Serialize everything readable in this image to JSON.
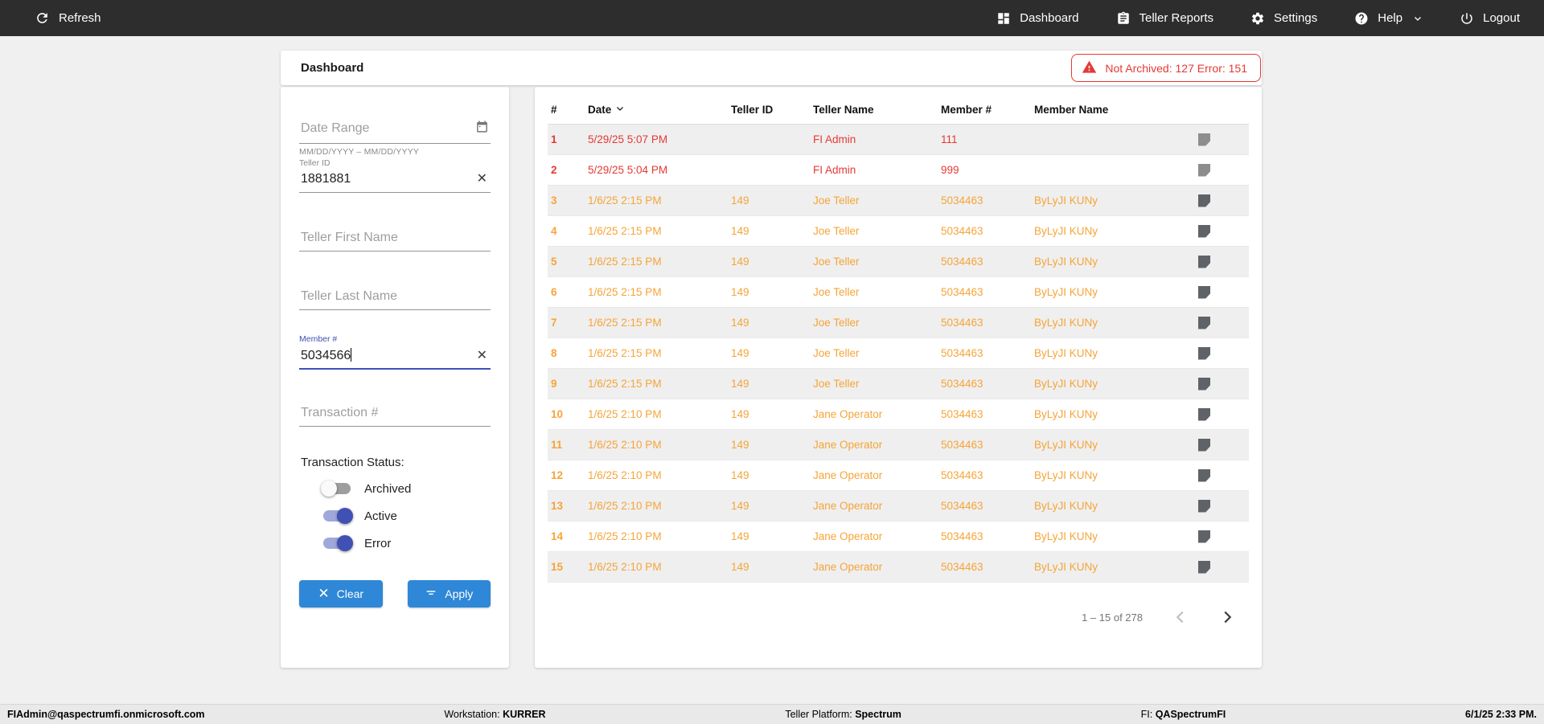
{
  "topbar": {
    "refresh_label": "Refresh",
    "nav": [
      {
        "label": "Dashboard"
      },
      {
        "label": "Teller Reports"
      },
      {
        "label": "Settings"
      },
      {
        "label": "Help"
      },
      {
        "label": "Logout"
      }
    ]
  },
  "header": {
    "title": "Dashboard",
    "alert": {
      "text": "Not Archived: 127  Error: 151",
      "color": "#E53935"
    }
  },
  "filters": {
    "date_range": {
      "placeholder": "Date Range",
      "hint": "MM/DD/YYYY – MM/DD/YYYY",
      "value": ""
    },
    "teller_id": {
      "label": "Teller ID",
      "value": "1881881"
    },
    "teller_first_name": {
      "placeholder": "Teller First Name",
      "value": ""
    },
    "teller_last_name": {
      "placeholder": "Teller Last Name",
      "value": ""
    },
    "member_number": {
      "label": "Member #",
      "value": "5034566"
    },
    "transaction_number": {
      "placeholder": "Transaction #",
      "value": ""
    },
    "status": {
      "label": "Transaction Status:",
      "toggles": [
        {
          "label": "Archived",
          "on": false
        },
        {
          "label": "Active",
          "on": true
        },
        {
          "label": "Error",
          "on": true
        }
      ]
    },
    "clear_label": "Clear",
    "apply_label": "Apply"
  },
  "table": {
    "columns": [
      "#",
      "Date",
      "Teller ID",
      "Teller Name",
      "Member #",
      "Member Name"
    ],
    "sorted_column": "Date",
    "rows": [
      {
        "num": "1",
        "date": "5/29/25 5:07 PM",
        "teller_id": "",
        "teller_name": "FI Admin",
        "member_number": "111",
        "member_name": "",
        "status": "error"
      },
      {
        "num": "2",
        "date": "5/29/25 5:04 PM",
        "teller_id": "",
        "teller_name": "FI Admin",
        "member_number": "999",
        "member_name": "",
        "status": "error"
      },
      {
        "num": "3",
        "date": "1/6/25 2:15 PM",
        "teller_id": "149",
        "teller_name": "Joe Teller",
        "member_number": "5034463",
        "member_name": "ByLyJI KUNy",
        "status": "active"
      },
      {
        "num": "4",
        "date": "1/6/25 2:15 PM",
        "teller_id": "149",
        "teller_name": "Joe Teller",
        "member_number": "5034463",
        "member_name": "ByLyJI KUNy",
        "status": "active"
      },
      {
        "num": "5",
        "date": "1/6/25 2:15 PM",
        "teller_id": "149",
        "teller_name": "Joe Teller",
        "member_number": "5034463",
        "member_name": "ByLyJI KUNy",
        "status": "active"
      },
      {
        "num": "6",
        "date": "1/6/25 2:15 PM",
        "teller_id": "149",
        "teller_name": "Joe Teller",
        "member_number": "5034463",
        "member_name": "ByLyJI KUNy",
        "status": "active"
      },
      {
        "num": "7",
        "date": "1/6/25 2:15 PM",
        "teller_id": "149",
        "teller_name": "Joe Teller",
        "member_number": "5034463",
        "member_name": "ByLyJI KUNy",
        "status": "active"
      },
      {
        "num": "8",
        "date": "1/6/25 2:15 PM",
        "teller_id": "149",
        "teller_name": "Joe Teller",
        "member_number": "5034463",
        "member_name": "ByLyJI KUNy",
        "status": "active"
      },
      {
        "num": "9",
        "date": "1/6/25 2:15 PM",
        "teller_id": "149",
        "teller_name": "Joe Teller",
        "member_number": "5034463",
        "member_name": "ByLyJI KUNy",
        "status": "active"
      },
      {
        "num": "10",
        "date": "1/6/25 2:10 PM",
        "teller_id": "149",
        "teller_name": "Jane Operator",
        "member_number": "5034463",
        "member_name": "ByLyJI KUNy",
        "status": "active"
      },
      {
        "num": "11",
        "date": "1/6/25 2:10 PM",
        "teller_id": "149",
        "teller_name": "Jane Operator",
        "member_number": "5034463",
        "member_name": "ByLyJI KUNy",
        "status": "active"
      },
      {
        "num": "12",
        "date": "1/6/25 2:10 PM",
        "teller_id": "149",
        "teller_name": "Jane Operator",
        "member_number": "5034463",
        "member_name": "ByLyJI KUNy",
        "status": "active"
      },
      {
        "num": "13",
        "date": "1/6/25 2:10 PM",
        "teller_id": "149",
        "teller_name": "Jane Operator",
        "member_number": "5034463",
        "member_name": "ByLyJI KUNy",
        "status": "active"
      },
      {
        "num": "14",
        "date": "1/6/25 2:10 PM",
        "teller_id": "149",
        "teller_name": "Jane Operator",
        "member_number": "5034463",
        "member_name": "ByLyJI KUNy",
        "status": "active"
      },
      {
        "num": "15",
        "date": "1/6/25 2:10 PM",
        "teller_id": "149",
        "teller_name": "Jane Operator",
        "member_number": "5034463",
        "member_name": "ByLyJI KUNy",
        "status": "active"
      }
    ],
    "pagination": {
      "range": "1 – 15 of 278"
    }
  },
  "footer": {
    "user": "FIAdmin@qaspectrumfi.onmicrosoft.com",
    "workstation_label": "Workstation: ",
    "workstation": "KURRER",
    "platform_label": "Teller Platform: ",
    "platform": "Spectrum",
    "fi_label": "FI: ",
    "fi": "QASpectrumFI",
    "datetime": "6/1/25 2:33 PM."
  },
  "colors": {
    "error": "#E53935",
    "active_orange": "#F6A438",
    "accent_blue": "#2E87D7",
    "indigo": "#3F51B5",
    "topbar": "#2d2d2d"
  }
}
